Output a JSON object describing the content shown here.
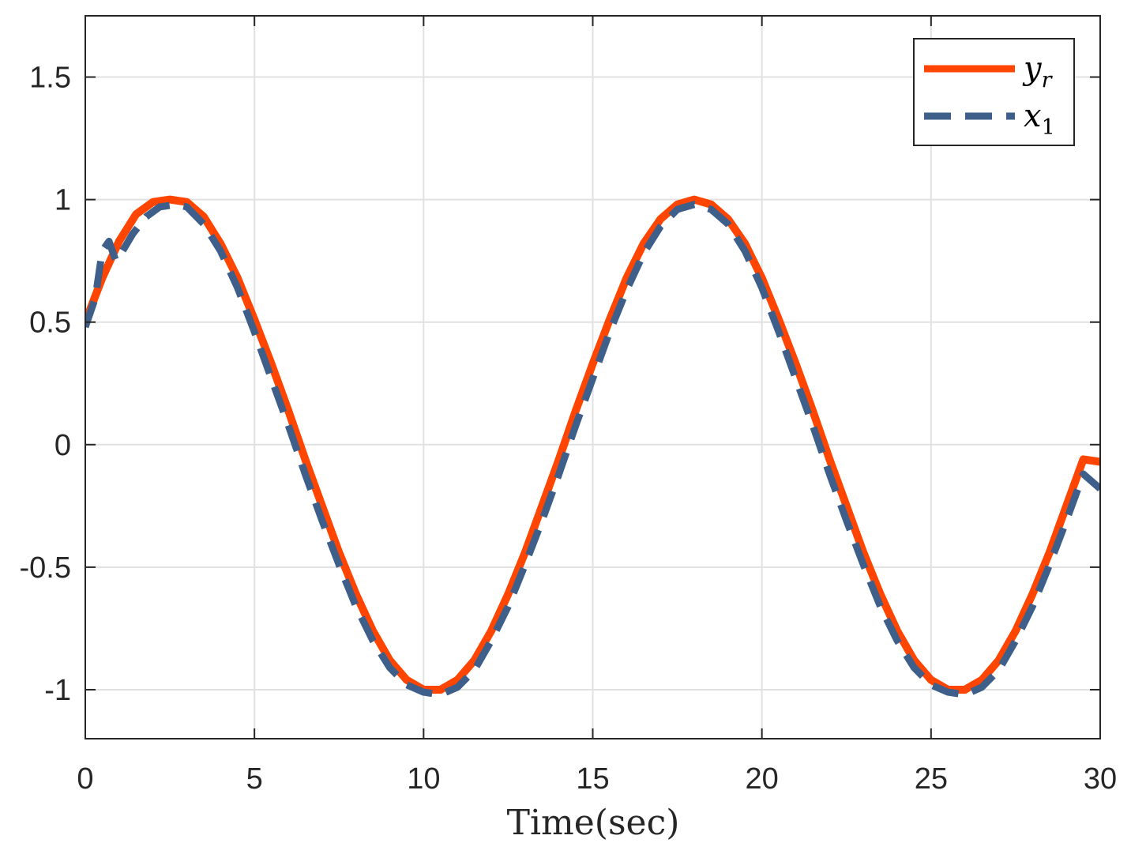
{
  "chart_data": {
    "type": "line",
    "title": "",
    "xlabel": "Time(sec)",
    "ylabel": "",
    "xlim": [
      0,
      30
    ],
    "ylim": [
      -1.2,
      1.75
    ],
    "xticks": [
      0,
      5,
      10,
      15,
      20,
      25,
      30
    ],
    "yticks": [
      -1,
      -0.5,
      0,
      0.5,
      1,
      1.5
    ],
    "xtick_labels": [
      "0",
      "5",
      "10",
      "15",
      "20",
      "25",
      "30"
    ],
    "ytick_labels": [
      "-1",
      "-0.5",
      "0",
      "0.5",
      "1",
      "1.5"
    ],
    "grid": true,
    "legend_position": "top-right",
    "series": [
      {
        "name": "y_r",
        "legend_base": "y",
        "legend_sub": "r",
        "color": "#FF4500",
        "style": "solid",
        "x": [
          0,
          0.5,
          1,
          1.5,
          2,
          2.5,
          3,
          3.5,
          4,
          4.5,
          5,
          5.5,
          6,
          6.5,
          7,
          7.5,
          8,
          8.5,
          9,
          9.5,
          10,
          10.5,
          11,
          11.5,
          12,
          12.5,
          13,
          13.5,
          14,
          14.5,
          15,
          15.5,
          16,
          16.5,
          17,
          17.5,
          18,
          18.5,
          19,
          19.5,
          20,
          20.5,
          21,
          21.5,
          22,
          22.5,
          23,
          23.5,
          24,
          24.5,
          25,
          25.5,
          26,
          26.5,
          27,
          27.5,
          28,
          28.5,
          29,
          29.5,
          30
        ],
        "y": [
          0.5,
          0.68,
          0.83,
          0.94,
          0.99,
          1.0,
          0.99,
          0.93,
          0.82,
          0.68,
          0.51,
          0.33,
          0.14,
          -0.06,
          -0.25,
          -0.44,
          -0.61,
          -0.76,
          -0.88,
          -0.96,
          -1.0,
          -1.0,
          -0.96,
          -0.88,
          -0.76,
          -0.61,
          -0.44,
          -0.25,
          -0.06,
          0.14,
          0.33,
          0.51,
          0.68,
          0.82,
          0.92,
          0.98,
          1.0,
          0.98,
          0.92,
          0.82,
          0.68,
          0.51,
          0.33,
          0.14,
          -0.06,
          -0.25,
          -0.44,
          -0.61,
          -0.76,
          -0.88,
          -0.96,
          -1.0,
          -1.0,
          -0.96,
          -0.88,
          -0.76,
          -0.61,
          -0.44,
          -0.25,
          -0.06,
          -0.07
        ]
      },
      {
        "name": "x_1",
        "legend_base": "x",
        "legend_sub": "1",
        "color": "#3E5F8A",
        "style": "dashed",
        "x": [
          0,
          0.3,
          0.5,
          0.7,
          0.9,
          1.1,
          1.4,
          1.8,
          2.2,
          2.7,
          3,
          3.5,
          4,
          4.5,
          5,
          5.5,
          6,
          6.5,
          7,
          7.5,
          8,
          8.5,
          9,
          9.5,
          10,
          10.5,
          11,
          11.5,
          12,
          12.5,
          13,
          13.5,
          14,
          14.5,
          15,
          15.5,
          16,
          16.5,
          17,
          17.5,
          18,
          18.5,
          19,
          19.5,
          20,
          20.5,
          21,
          21.5,
          22,
          22.5,
          23,
          23.5,
          24,
          24.5,
          25,
          25.5,
          26,
          26.5,
          27,
          27.5,
          28,
          28.5,
          29,
          29.5,
          30
        ],
        "y": [
          0.48,
          0.6,
          0.79,
          0.83,
          0.75,
          0.79,
          0.86,
          0.93,
          0.97,
          0.98,
          0.97,
          0.9,
          0.79,
          0.64,
          0.46,
          0.27,
          0.08,
          -0.12,
          -0.31,
          -0.49,
          -0.66,
          -0.8,
          -0.91,
          -0.98,
          -1.01,
          -1.02,
          -0.99,
          -0.92,
          -0.8,
          -0.66,
          -0.49,
          -0.31,
          -0.12,
          0.08,
          0.27,
          0.46,
          0.63,
          0.78,
          0.89,
          0.96,
          0.98,
          0.96,
          0.9,
          0.79,
          0.64,
          0.46,
          0.27,
          0.08,
          -0.12,
          -0.31,
          -0.49,
          -0.66,
          -0.8,
          -0.91,
          -0.98,
          -1.01,
          -1.02,
          -0.99,
          -0.92,
          -0.8,
          -0.66,
          -0.49,
          -0.31,
          -0.12,
          -0.18
        ]
      }
    ]
  }
}
